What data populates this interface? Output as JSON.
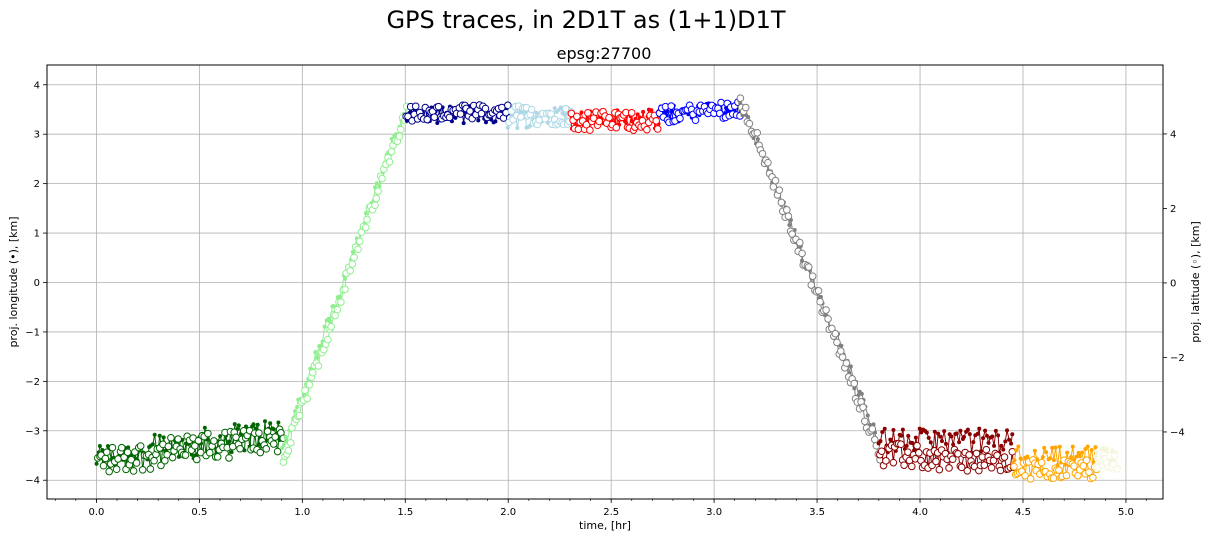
{
  "chart_data": {
    "type": "line",
    "title": "GPS traces, in 2D1T as (1+1)D1T",
    "subtitle": "epsg:27700",
    "xlabel": "time, [hr]",
    "ylabel_left": "proj. longitude (•), [km]",
    "ylabel_right": "proj. latitude (◦), [km]",
    "xlim": [
      -0.24,
      5.18
    ],
    "ylim_left": [
      -4.38,
      4.4
    ],
    "ylim_right": [
      -5.8,
      5.85
    ],
    "x_ticks": [
      "0.0",
      "0.5",
      "1.0",
      "1.5",
      "2.0",
      "2.5",
      "3.0",
      "3.5",
      "4.0",
      "4.5",
      "5.0"
    ],
    "y_left_ticks": [
      "−4",
      "−3",
      "−2",
      "−1",
      "0",
      "1",
      "2",
      "3",
      "4"
    ],
    "y_right_ticks": [
      "−4",
      "−2",
      "0",
      "2",
      "4"
    ],
    "grid": true,
    "markers": {
      "longitude": "filled dot (left axis)",
      "latitude": "open circle (right axis)"
    },
    "series": [
      {
        "color": "#006400",
        "t": [
          0.0,
          0.9
        ],
        "lon": [
          -3.55,
          -3.0
        ],
        "lat": [
          -4.8,
          -4.15
        ],
        "noise": 0.3
      },
      {
        "color": "#90ee90",
        "t": [
          0.9,
          1.5
        ],
        "lon": [
          -3.4,
          3.5
        ],
        "lat": [
          -4.8,
          4.7
        ],
        "noise": 0.15
      },
      {
        "color": "#00008b",
        "t": [
          1.5,
          2.0
        ],
        "lon": [
          3.4,
          3.4
        ],
        "lat": [
          4.55,
          4.55
        ],
        "noise": 0.18
      },
      {
        "color": "#add8e6",
        "t": [
          2.0,
          2.3
        ],
        "lon": [
          3.3,
          3.4
        ],
        "lat": [
          4.5,
          4.5
        ],
        "noise": 0.2
      },
      {
        "color": "#ff0000",
        "t": [
          2.3,
          2.73
        ],
        "lon": [
          3.3,
          3.3
        ],
        "lat": [
          4.35,
          4.35
        ],
        "noise": 0.2
      },
      {
        "color": "#0000ff",
        "t": [
          2.73,
          3.12
        ],
        "lon": [
          3.4,
          3.5
        ],
        "lat": [
          4.5,
          4.7
        ],
        "noise": 0.18
      },
      {
        "color": "#808080",
        "t": [
          3.12,
          3.8
        ],
        "lon": [
          3.7,
          -3.2
        ],
        "lat": [
          5.0,
          -4.6
        ],
        "noise": 0.15
      },
      {
        "color": "#8b0000",
        "t": [
          3.8,
          4.45
        ],
        "lon": [
          -3.2,
          -3.2
        ],
        "lat": [
          -4.6,
          -4.85
        ],
        "noise": 0.25
      },
      {
        "color": "#ffa500",
        "t": [
          4.45,
          4.85
        ],
        "lon": [
          -3.5,
          -3.5
        ],
        "lat": [
          -5.0,
          -5.0
        ],
        "noise": 0.2
      },
      {
        "color": "#f5f5dc",
        "t": [
          4.85,
          4.95
        ],
        "lon": [
          -3.5,
          -3.45
        ],
        "lat": [
          -4.85,
          -4.8
        ],
        "noise": 0.15
      }
    ]
  }
}
